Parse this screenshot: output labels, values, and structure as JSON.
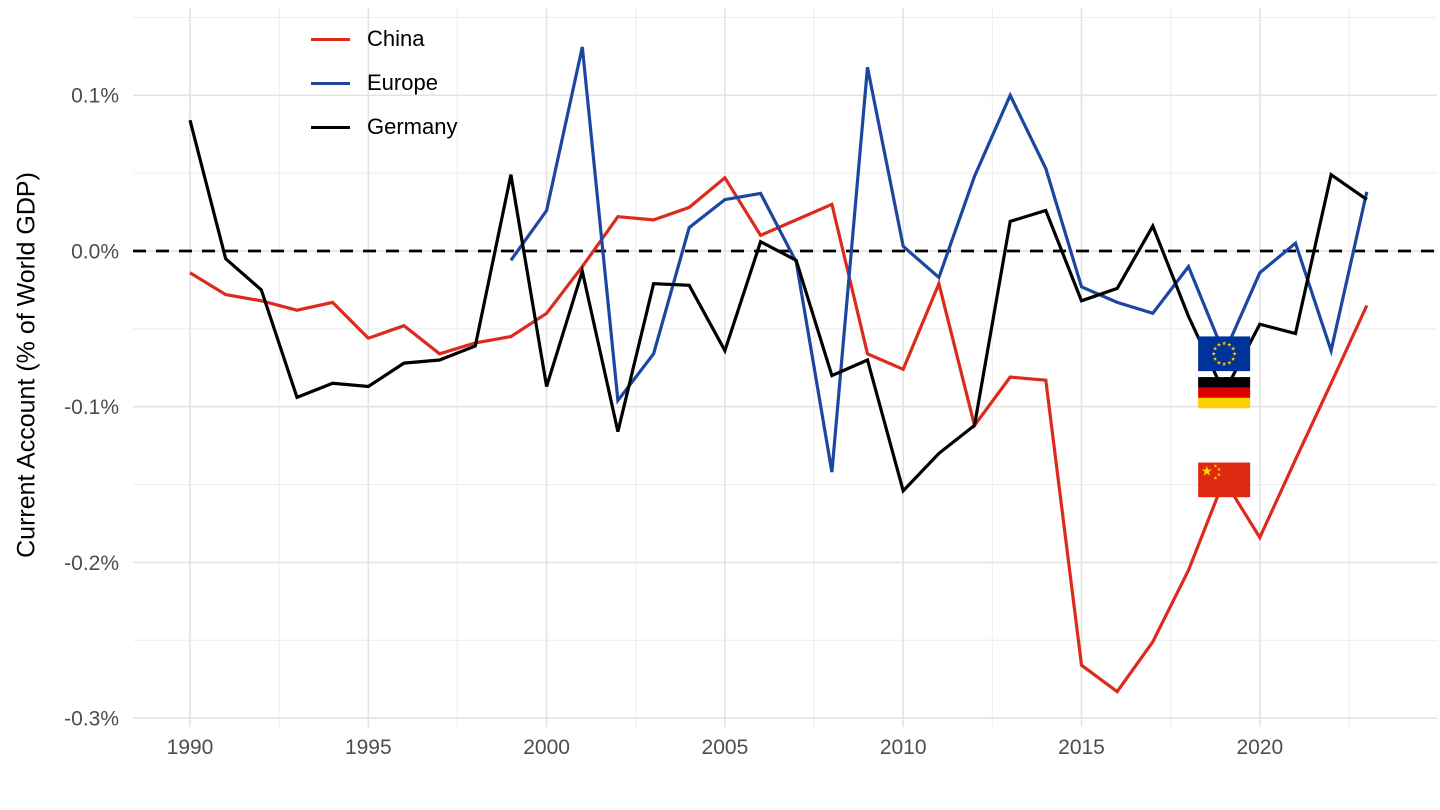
{
  "figure": {
    "background": "#ffffff"
  },
  "y_axis": {
    "title": "Current Account (% of World GDP)",
    "ticks": [
      {
        "label": "0.1%",
        "value": 0.1
      },
      {
        "label": "0.0%",
        "value": 0.0
      },
      {
        "label": "-0.1%",
        "value": -0.1
      },
      {
        "label": "-0.2%",
        "value": -0.2
      },
      {
        "label": "-0.3%",
        "value": -0.3
      }
    ],
    "minor_values": [
      0.15,
      0.05,
      -0.05,
      -0.15,
      -0.25
    ],
    "label_color": "#4d4d4d"
  },
  "x_axis": {
    "ticks": [
      {
        "label": "1990",
        "value": 1990
      },
      {
        "label": "1995",
        "value": 1995
      },
      {
        "label": "2000",
        "value": 2000
      },
      {
        "label": "2005",
        "value": 2005
      },
      {
        "label": "2010",
        "value": 2010
      },
      {
        "label": "2015",
        "value": 2015
      },
      {
        "label": "2020",
        "value": 2020
      }
    ],
    "minor_values": [
      1992.5,
      1997.5,
      2002.5,
      2007.5,
      2012.5,
      2017.5,
      2022.5
    ],
    "label_color": "#4d4d4d"
  },
  "legend": {
    "entries": [
      {
        "label": "China",
        "color": "#dc2b1c"
      },
      {
        "label": "Europe",
        "color": "#1c47a0"
      },
      {
        "label": "Germany",
        "color": "#000000"
      }
    ]
  },
  "chart_data": {
    "type": "line",
    "title": "",
    "xlabel": "",
    "ylabel": "Current Account (% of World GDP)",
    "value_units": "percent of world GDP",
    "xlim": [
      1988.4,
      2025.0
    ],
    "ylim": [
      -0.306,
      0.156
    ],
    "grid": "on",
    "legend_position": "top-left-inside",
    "zero_reference_line": {
      "value": 0.0,
      "style": "dashed",
      "color": "#000000"
    },
    "series": [
      {
        "name": "China",
        "color": "#dc2b1c",
        "years": [
          1990,
          1991,
          1992,
          1993,
          1994,
          1995,
          1996,
          1997,
          1998,
          1999,
          2000,
          2001,
          2002,
          2003,
          2004,
          2005,
          2006,
          2007,
          2008,
          2009,
          2010,
          2011,
          2012,
          2013,
          2014,
          2015,
          2016,
          2017,
          2018,
          2019,
          2020,
          2021,
          2022,
          2023
        ],
        "values": [
          -0.014,
          -0.028,
          -0.032,
          -0.038,
          -0.033,
          -0.056,
          -0.048,
          -0.066,
          -0.059,
          -0.055,
          -0.04,
          -0.01,
          0.022,
          0.02,
          0.028,
          0.047,
          0.01,
          0.02,
          0.03,
          -0.066,
          -0.076,
          -0.021,
          -0.112,
          -0.081,
          -0.083,
          -0.266,
          -0.283,
          -0.251,
          -0.205,
          -0.147,
          -0.184,
          -0.134,
          -0.085,
          -0.035
        ]
      },
      {
        "name": "Europe",
        "color": "#1c47a0",
        "years": [
          1999,
          2000,
          2001,
          2002,
          2003,
          2004,
          2005,
          2006,
          2007,
          2008,
          2009,
          2010,
          2011,
          2012,
          2013,
          2014,
          2015,
          2016,
          2017,
          2018,
          2019,
          2020,
          2021,
          2022,
          2023
        ],
        "values": [
          -0.006,
          0.026,
          0.131,
          -0.096,
          -0.066,
          0.015,
          0.033,
          0.037,
          -0.007,
          -0.142,
          0.118,
          0.003,
          -0.017,
          0.048,
          0.1,
          0.053,
          -0.023,
          -0.033,
          -0.04,
          -0.01,
          -0.066,
          -0.014,
          0.005,
          -0.064,
          0.038
        ]
      },
      {
        "name": "Germany",
        "color": "#000000",
        "years": [
          1990,
          1991,
          1992,
          1993,
          1994,
          1995,
          1996,
          1997,
          1998,
          1999,
          2000,
          2001,
          2002,
          2003,
          2004,
          2005,
          2006,
          2007,
          2008,
          2009,
          2010,
          2011,
          2012,
          2013,
          2014,
          2015,
          2016,
          2017,
          2018,
          2019,
          2020,
          2021,
          2022,
          2023
        ],
        "values": [
          0.084,
          -0.005,
          -0.025,
          -0.094,
          -0.085,
          -0.087,
          -0.072,
          -0.07,
          -0.061,
          0.049,
          -0.087,
          -0.013,
          -0.116,
          -0.021,
          -0.022,
          -0.064,
          0.006,
          -0.006,
          -0.08,
          -0.07,
          -0.154,
          -0.13,
          -0.112,
          0.019,
          0.026,
          -0.032,
          -0.024,
          0.016,
          -0.042,
          -0.091,
          -0.047,
          -0.053,
          0.049,
          0.033
        ]
      }
    ],
    "flag_markers": [
      {
        "flag": "eu-flag",
        "year": 2019,
        "value": -0.066,
        "colors": {
          "field": "#003399",
          "stars": "#ffcc00"
        }
      },
      {
        "flag": "germany-flag",
        "year": 2019,
        "value": -0.091,
        "colors": {
          "stripes": [
            "#000000",
            "#dd0000",
            "#ffce00"
          ]
        }
      },
      {
        "flag": "china-flag",
        "year": 2019,
        "value": -0.147,
        "colors": {
          "field": "#de2910",
          "stars": "#ffde00"
        }
      }
    ]
  }
}
